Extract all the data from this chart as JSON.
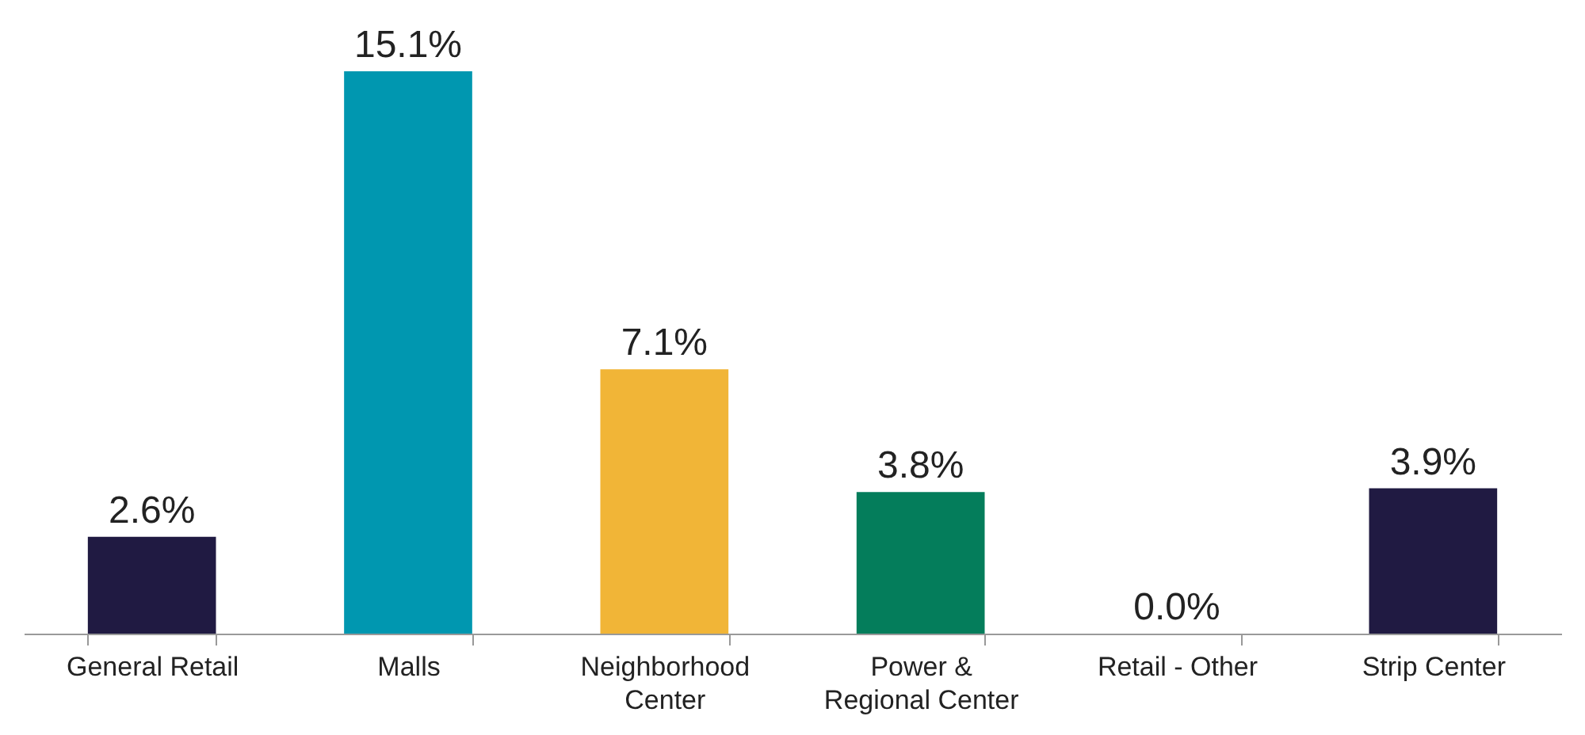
{
  "chart_data": {
    "type": "bar",
    "categories": [
      "General Retail",
      "Malls",
      "Neighborhood Center",
      "Power & Regional Center",
      "Retail - Other",
      "Strip Center"
    ],
    "values": [
      2.6,
      15.1,
      7.1,
      3.8,
      0.0,
      3.9
    ],
    "value_labels": [
      "2.6%",
      "15.1%",
      "7.1%",
      "3.8%",
      "0.0%",
      "3.9%"
    ],
    "colors": [
      "#201a42",
      "#0097b0",
      "#f1b537",
      "#047d5b",
      "#201a42",
      "#201a42"
    ]
  }
}
